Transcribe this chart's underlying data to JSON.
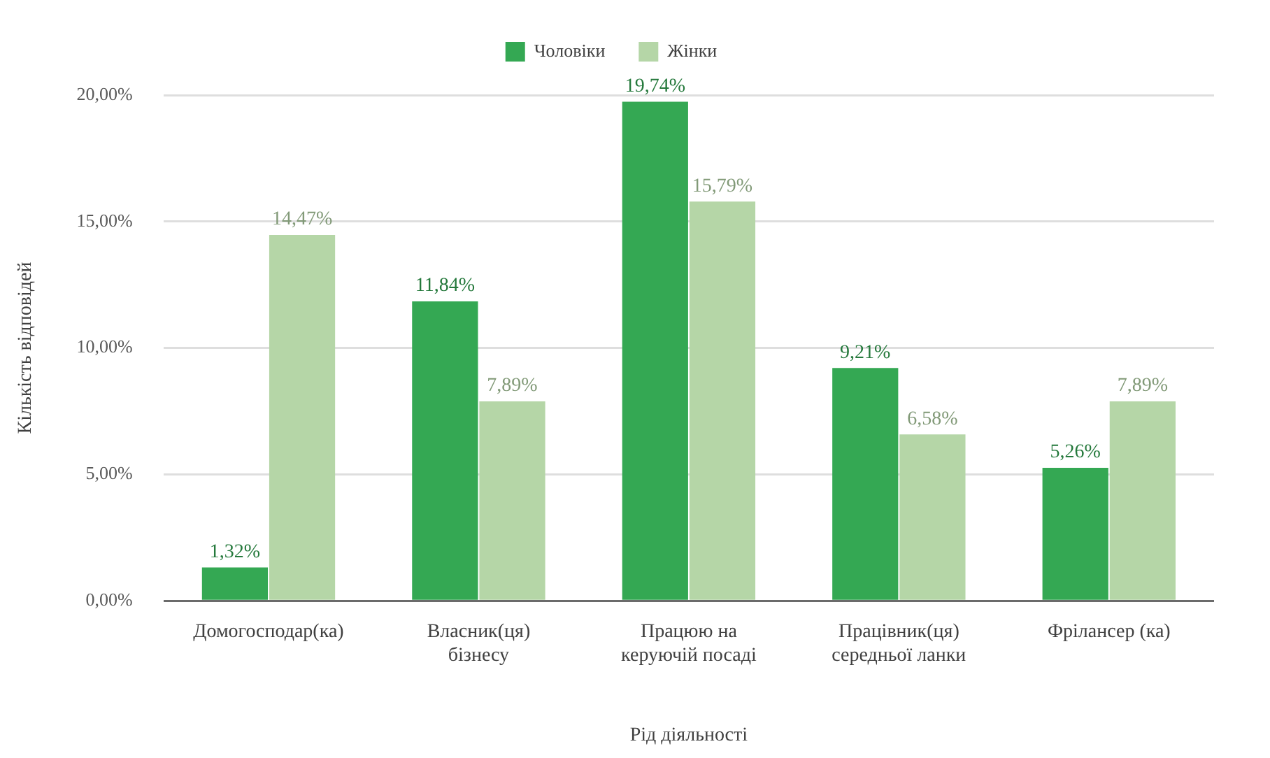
{
  "chart_data": {
    "type": "bar",
    "categories": [
      "Домогосподар(ка)",
      "Власник(ця) бізнесу",
      "Працюю на керуючій посаді",
      "Працівник(ця) середньої ланки",
      "Фрілансер (ка)"
    ],
    "series": [
      {
        "name": "Чоловіки",
        "color": "#34a853",
        "values": [
          1.32,
          11.84,
          19.74,
          9.21,
          5.26
        ],
        "value_labels": [
          "1,32%",
          "11,84%",
          "19,74%",
          "9,21%",
          "5,26%"
        ]
      },
      {
        "name": "Жінки",
        "color": "#b5d6a7",
        "values": [
          14.47,
          7.89,
          15.79,
          6.58,
          7.89
        ],
        "value_labels": [
          "14,47%",
          "7,89%",
          "15,79%",
          "6,58%",
          "7,89%"
        ]
      }
    ],
    "xlabel": "Рід діяльності",
    "ylabel": "Кількість відповідей",
    "ylim": [
      0,
      20
    ],
    "yticks": [
      {
        "value": 0,
        "label": "0,00%"
      },
      {
        "value": 5,
        "label": "5,00%"
      },
      {
        "value": 10,
        "label": "10,00%"
      },
      {
        "value": 15,
        "label": "15,00%"
      },
      {
        "value": 20,
        "label": "20,00%"
      }
    ],
    "grid": "y",
    "legend": "top"
  }
}
